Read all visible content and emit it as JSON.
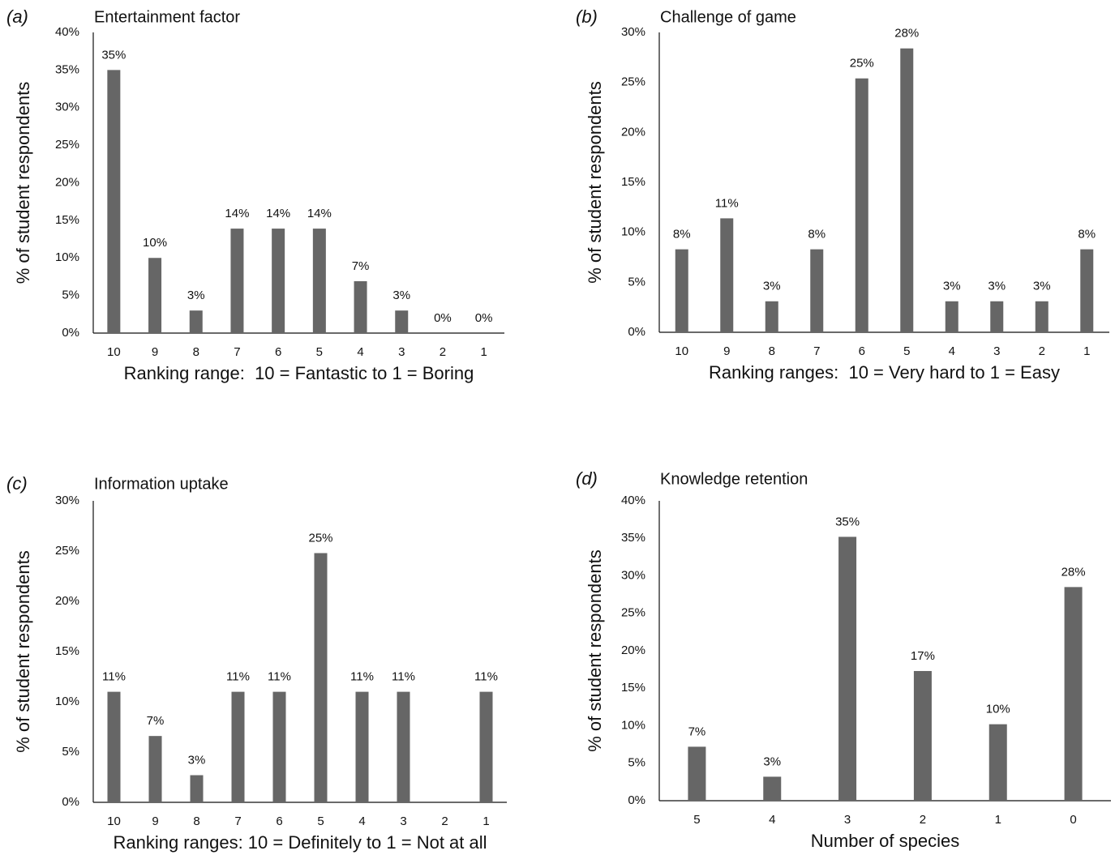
{
  "chart_data": [
    {
      "type": "bar",
      "panel": "(a)",
      "title": "Entertainment factor",
      "ylabel": "% of student respondents",
      "xlabel": "Ranking range:  10 = Fantastic to 1 = Boring",
      "categories": [
        "10",
        "9",
        "8",
        "7",
        "6",
        "5",
        "4",
        "3",
        "2",
        "1"
      ],
      "values": [
        35,
        10,
        3,
        13.9,
        13.9,
        13.9,
        6.9,
        3,
        0,
        0
      ],
      "value_labels": [
        "35%",
        "10%",
        "3%",
        "14%",
        "14%",
        "14%",
        "7%",
        "3%",
        "0%",
        "0%"
      ],
      "color": "#666666",
      "ylim": [
        0,
        40
      ],
      "yticks": [
        {
          "value": 0,
          "label": "0%"
        },
        {
          "value": 5,
          "label": "5%"
        },
        {
          "value": 10,
          "label": "10%"
        },
        {
          "value": 15,
          "label": "15%"
        },
        {
          "value": 20,
          "label": "20%"
        },
        {
          "value": 25,
          "label": "25%"
        },
        {
          "value": 30,
          "label": "30%"
        },
        {
          "value": 35,
          "label": "35%"
        },
        {
          "value": 40,
          "label": "40%"
        }
      ]
    },
    {
      "type": "bar",
      "panel": "(b)",
      "title": "Challenge of game",
      "ylabel": "% of student respondents",
      "xlabel": "Ranking ranges:  10 = Very hard to 1 = Easy",
      "categories": [
        "10",
        "9",
        "8",
        "7",
        "6",
        "5",
        "4",
        "3",
        "2",
        "1"
      ],
      "values": [
        8.3,
        11.4,
        3.1,
        8.3,
        25.4,
        28.4,
        3.1,
        3.1,
        3.1,
        8.3
      ],
      "value_labels": [
        "8%",
        "11%",
        "3%",
        "8%",
        "25%",
        "28%",
        "3%",
        "3%",
        "3%",
        "8%"
      ],
      "color": "#666666",
      "ylim": [
        0,
        30
      ],
      "yticks": [
        {
          "value": 0,
          "label": "0%"
        },
        {
          "value": 5,
          "label": "5%"
        },
        {
          "value": 10,
          "label": "10%"
        },
        {
          "value": 15,
          "label": "15%"
        },
        {
          "value": 20,
          "label": "20%"
        },
        {
          "value": 25,
          "label": "25%"
        },
        {
          "value": 30,
          "label": "30%"
        }
      ]
    },
    {
      "type": "bar",
      "panel": "(c)",
      "title": "Information uptake",
      "ylabel": "% of student respondents",
      "xlabel": "Ranking ranges: 10 = Definitely to 1 = Not at all",
      "categories": [
        "10",
        "9",
        "8",
        "7",
        "6",
        "5",
        "4",
        "3",
        "2",
        "1"
      ],
      "values": [
        11,
        6.6,
        2.7,
        11,
        11,
        24.8,
        11,
        11,
        null,
        11
      ],
      "value_labels": [
        "11%",
        "7%",
        "3%",
        "11%",
        "11%",
        "25%",
        "11%",
        "11%",
        null,
        "11%"
      ],
      "color": "#666666",
      "ylim": [
        0,
        30
      ],
      "yticks": [
        {
          "value": 0,
          "label": "0%"
        },
        {
          "value": 5,
          "label": "5%"
        },
        {
          "value": 10,
          "label": "10%"
        },
        {
          "value": 15,
          "label": "15%"
        },
        {
          "value": 20,
          "label": "20%"
        },
        {
          "value": 25,
          "label": "25%"
        },
        {
          "value": 30,
          "label": "30%"
        }
      ]
    },
    {
      "type": "bar",
      "panel": "(d)",
      "title": "Knowledge retention",
      "ylabel": "% of student respondents",
      "xlabel": "Number of species",
      "categories": [
        "5",
        "4",
        "3",
        "2",
        "1",
        "0"
      ],
      "values": [
        7.2,
        3.2,
        35.2,
        17.3,
        10.2,
        28.5
      ],
      "value_labels": [
        "7%",
        "3%",
        "35%",
        "17%",
        "10%",
        "28%"
      ],
      "color": "#666666",
      "ylim": [
        0,
        40
      ],
      "yticks": [
        {
          "value": 0,
          "label": "0%"
        },
        {
          "value": 5,
          "label": "5%"
        },
        {
          "value": 10,
          "label": "10%"
        },
        {
          "value": 15,
          "label": "15%"
        },
        {
          "value": 20,
          "label": "20%"
        },
        {
          "value": 25,
          "label": "25%"
        },
        {
          "value": 30,
          "label": "30%"
        },
        {
          "value": 35,
          "label": "35%"
        },
        {
          "value": 40,
          "label": "40%"
        }
      ]
    }
  ]
}
